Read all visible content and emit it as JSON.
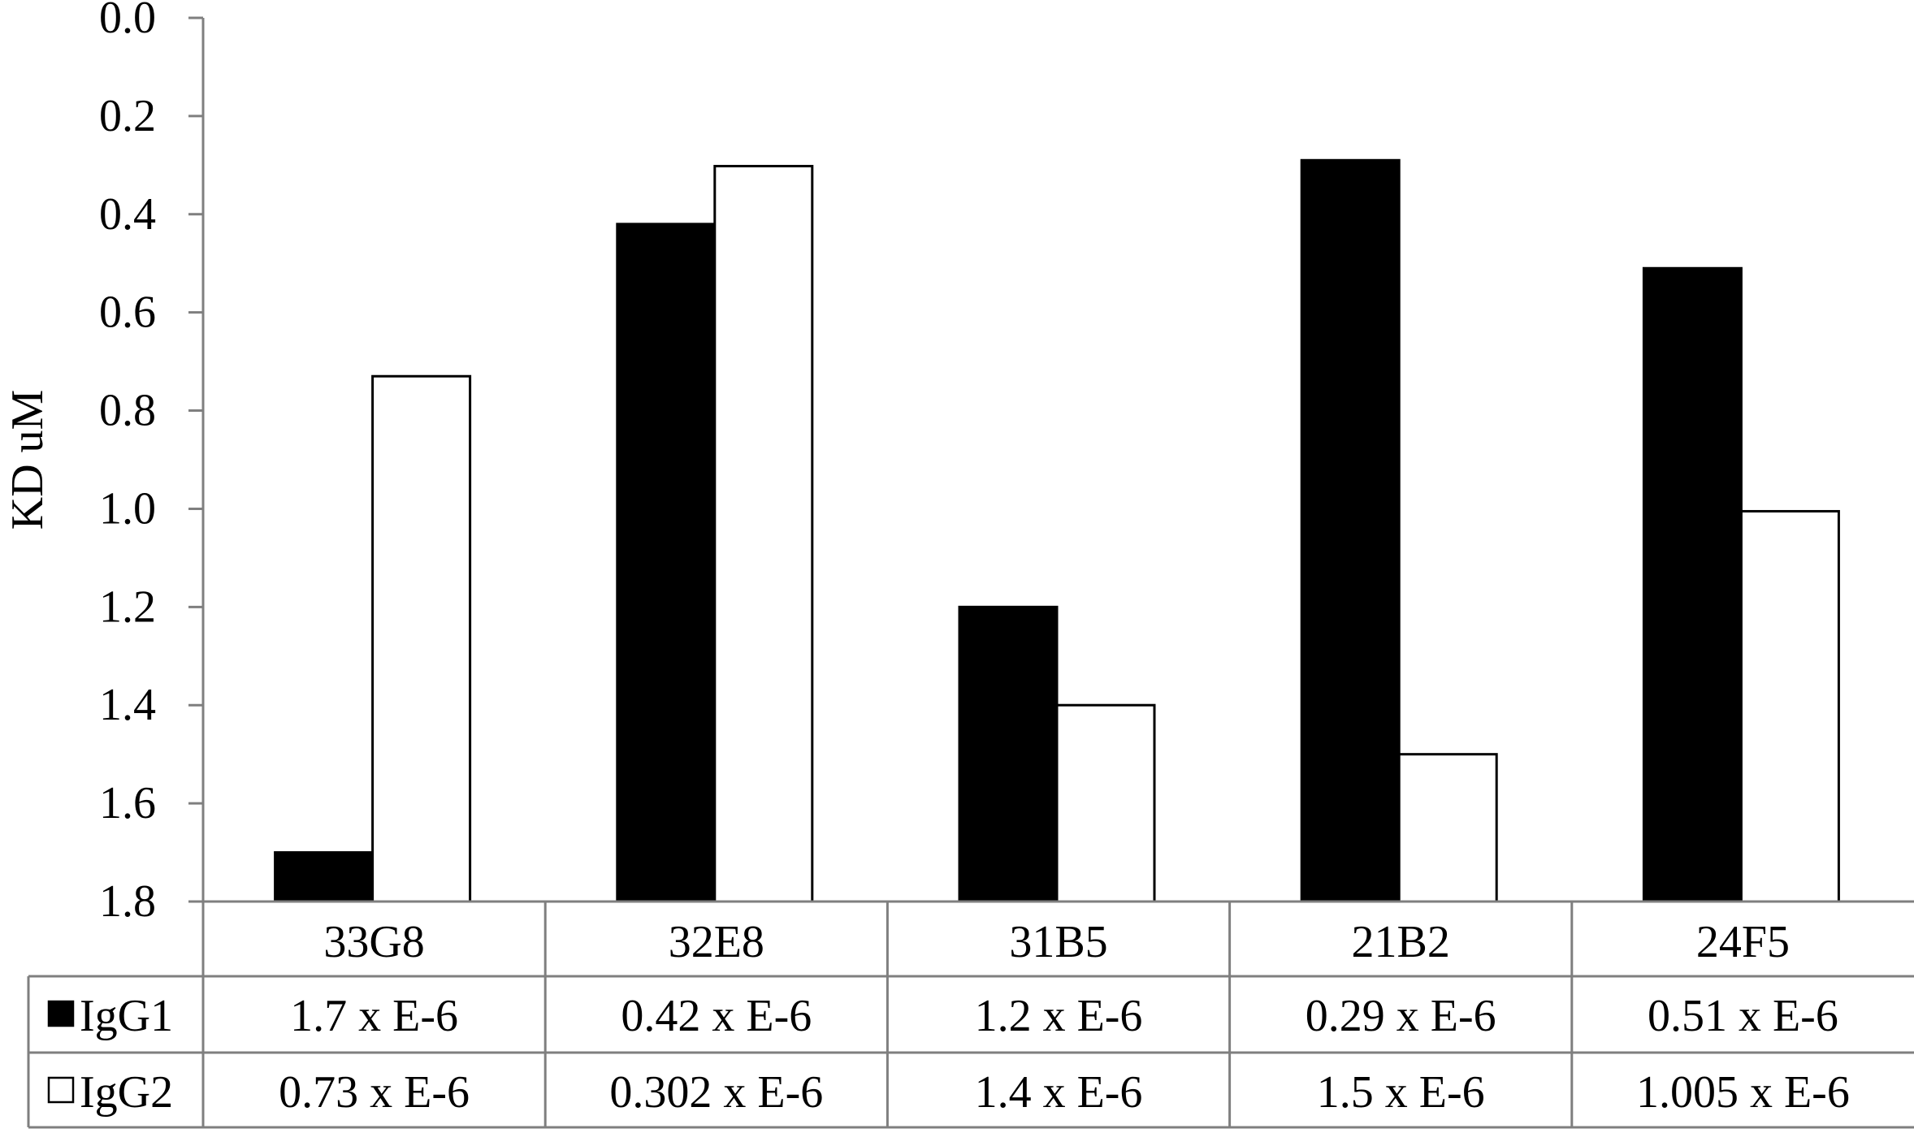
{
  "chart_data": {
    "type": "bar",
    "ylabel": "KD uM",
    "y_axis_reversed": true,
    "ylim": [
      0.0,
      1.8
    ],
    "yticks": [
      "0.0",
      "0.2",
      "0.4",
      "0.6",
      "0.8",
      "1.0",
      "1.2",
      "1.4",
      "1.6",
      "1.8"
    ],
    "categories": [
      "33G8",
      "32E8",
      "31B5",
      "21B2",
      "24F5"
    ],
    "grid": false,
    "legend_placement": "data table below chart",
    "series": [
      {
        "name": "IgG1",
        "color": "#000000",
        "values": [
          1.7,
          0.42,
          1.2,
          0.29,
          0.51
        ],
        "table_labels": [
          "1.7 x E-6",
          "0.42 x E-6",
          "1.2 x E-6",
          "0.29 x E-6",
          "0.51 x E-6"
        ]
      },
      {
        "name": "IgG2",
        "color": "#ffffff",
        "values": [
          0.73,
          0.302,
          1.4,
          1.5,
          1.005
        ],
        "table_labels": [
          "0.73 x E-6",
          "0.302 x E-6",
          "1.4 x E-6",
          "1.5 x E-6",
          "1.005 x E-6"
        ]
      }
    ]
  }
}
